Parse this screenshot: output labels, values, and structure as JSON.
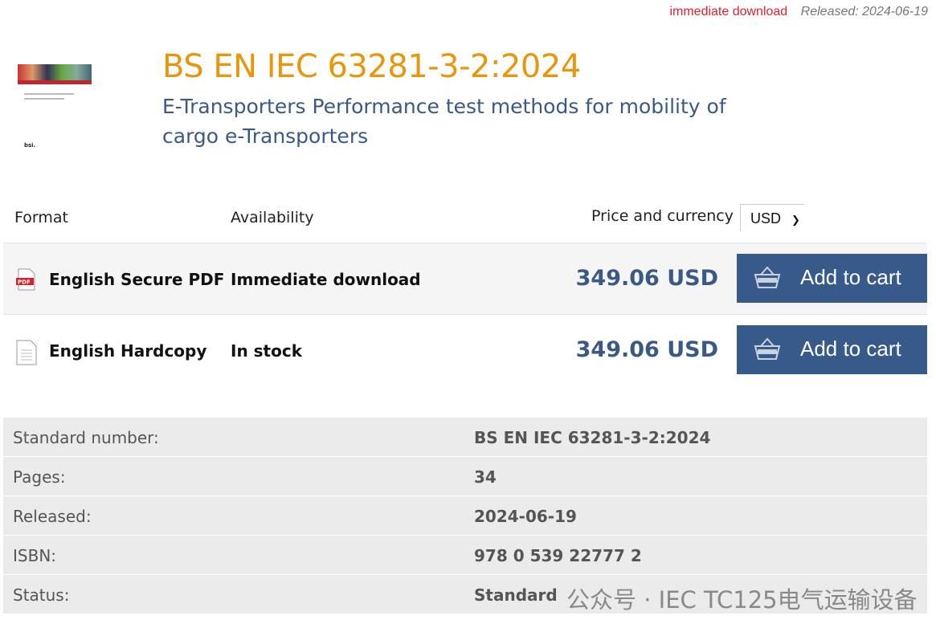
{
  "top": {
    "availability": "immediate download",
    "released": "Released: 2024-06-19"
  },
  "product": {
    "code": "BS EN IEC 63281-3-2:2024",
    "title": "E-Transporters Performance test methods for mobility of cargo e-Transporters"
  },
  "table": {
    "headers": {
      "format": "Format",
      "availability": "Availability",
      "price": "Price and currency"
    },
    "currency": "USD",
    "rows": [
      {
        "format": "English Secure PDF",
        "icon": "pdf-file-icon",
        "availability": "Immediate download",
        "price": "349.06 USD",
        "button": "Add to cart"
      },
      {
        "format": "English Hardcopy",
        "icon": "document-icon",
        "availability": "In stock",
        "price": "349.06 USD",
        "button": "Add to cart"
      }
    ]
  },
  "details": [
    {
      "label": "Standard number:",
      "value": "BS EN IEC 63281-3-2:2024"
    },
    {
      "label": "Pages:",
      "value": "34"
    },
    {
      "label": "Released:",
      "value": "2024-06-19"
    },
    {
      "label": "ISBN:",
      "value": "978 0 539 22777 2"
    },
    {
      "label": "Status:",
      "value": "Standard"
    }
  ],
  "watermark": "公众号 · IEC TC125电气运输设备",
  "colors": {
    "title": "#e8960c",
    "subtitle": "#3a5a85",
    "button": "#375a8a",
    "highlight": "#e0202c"
  }
}
